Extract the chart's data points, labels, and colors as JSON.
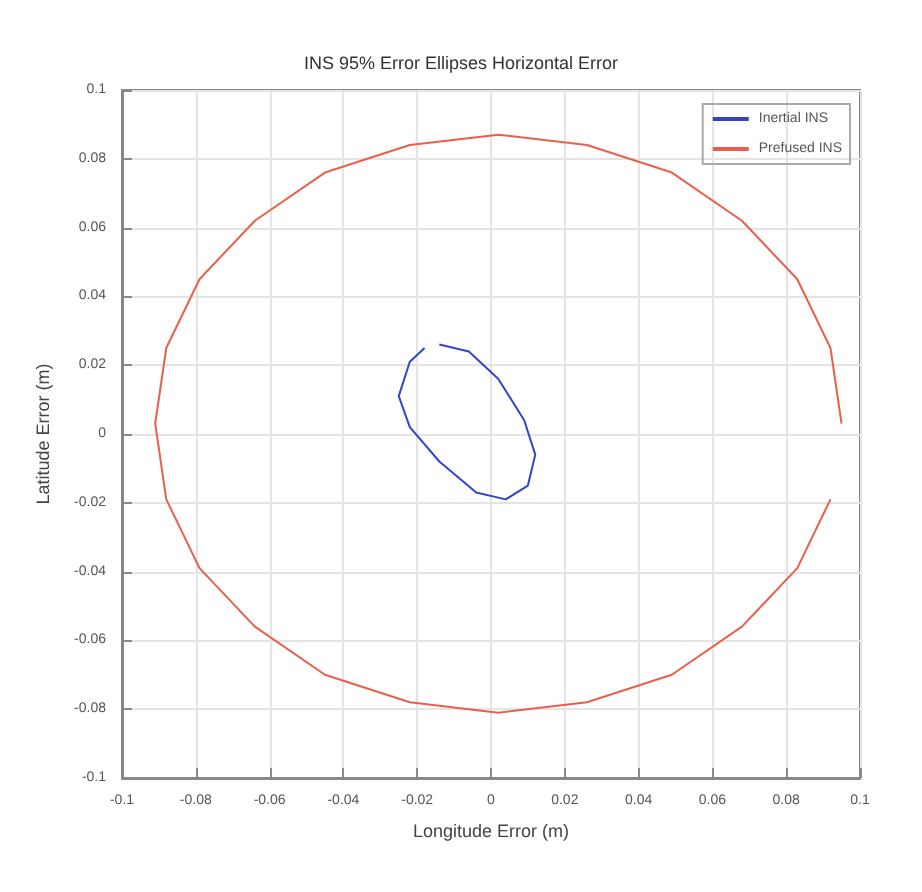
{
  "chart_data": {
    "type": "line",
    "title": "INS 95% Error Ellipses Horizontal Error",
    "xlabel": "Longitude Error (m)",
    "ylabel": "Latitude Error (m)",
    "xlim": [
      -0.1,
      0.1
    ],
    "ylim": [
      -0.1,
      0.1
    ],
    "xticks": [
      -0.1,
      -0.08,
      -0.06,
      -0.04,
      -0.02,
      0,
      0.02,
      0.04,
      0.06,
      0.08,
      0.1
    ],
    "yticks": [
      -0.1,
      -0.08,
      -0.06,
      -0.04,
      -0.02,
      0,
      0.02,
      0.04,
      0.06,
      0.08,
      0.1
    ],
    "grid": true,
    "legend": "top right",
    "marker": "none",
    "line_style": "solid",
    "series": [
      {
        "name": "Inertial INS",
        "color": "#3344cc",
        "x": [
          -0.014,
          -0.006,
          0.002,
          0.009,
          0.012,
          0.01,
          0.004,
          -0.004,
          -0.014,
          -0.022,
          -0.025,
          -0.022,
          -0.018
        ],
        "values": [
          0.026,
          0.024,
          0.016,
          0.004,
          -0.006,
          -0.015,
          -0.019,
          -0.017,
          -0.008,
          0.002,
          0.011,
          0.021,
          0.025
        ]
      },
      {
        "name": "Prefused INS",
        "color": "#e8604c",
        "x": [
          0.095,
          0.092,
          0.083,
          0.068,
          0.049,
          0.026,
          0.002,
          -0.022,
          -0.045,
          -0.064,
          -0.079,
          -0.088,
          -0.091,
          -0.088,
          -0.079,
          -0.064,
          -0.045,
          -0.022,
          0.002,
          0.026,
          0.049,
          0.068,
          0.083,
          0.092
        ],
        "values": [
          0.003,
          0.025,
          0.045,
          0.062,
          0.076,
          0.084,
          0.087,
          0.084,
          0.076,
          0.062,
          0.045,
          0.025,
          0.003,
          -0.019,
          -0.039,
          -0.056,
          -0.07,
          -0.078,
          -0.081,
          -0.078,
          -0.07,
          -0.056,
          -0.039,
          -0.019
        ]
      }
    ]
  }
}
